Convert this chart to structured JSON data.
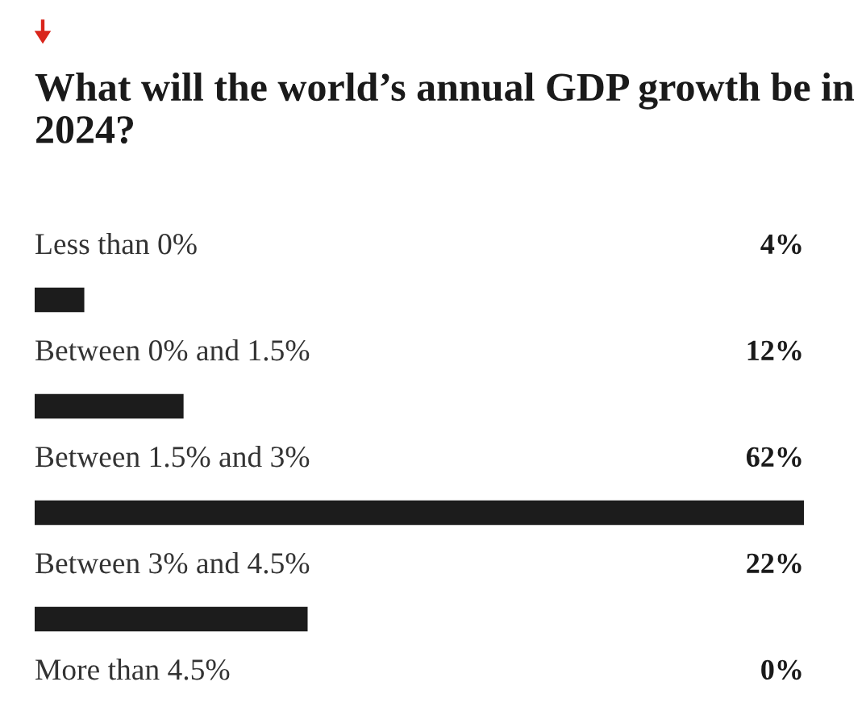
{
  "chart_data": {
    "type": "bar",
    "orientation": "horizontal",
    "title": "What will the world’s annual GDP growth be in 2024?",
    "categories": [
      "Less than 0%",
      "Between 0% and 1.5%",
      "Between 1.5% and 3%",
      "Between 3% and 4.5%",
      "More than 4.5%"
    ],
    "values": [
      4,
      12,
      62,
      22,
      0
    ],
    "value_labels": [
      "4%",
      "12%",
      "62%",
      "22%",
      "0%"
    ],
    "color": "#1c1c1c",
    "tick_labels": false
  }
}
